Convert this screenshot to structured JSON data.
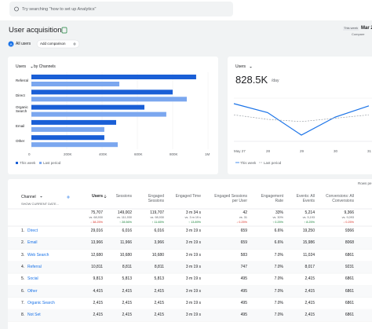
{
  "top_bar": {
    "search_placeholder": "Try searching \"how to set up Analytics\""
  },
  "header": {
    "title": "User acquisition",
    "date_label": "This week",
    "date": "Mar 2",
    "compare": "Compare",
    "segment_badge": "A",
    "segment": "All users",
    "add_comparison": "Add comparison"
  },
  "bar_chart": {
    "type": "bar",
    "metric": "Users",
    "subtitle": "by Channels",
    "categories": [
      "Referral",
      "Direct",
      "Organic Search",
      "Email",
      "Other"
    ],
    "series": [
      {
        "name": "This week",
        "color": "#1a5fd6",
        "values": [
          933000,
          800000,
          640000,
          480000,
          413000
        ]
      },
      {
        "name": "Last period",
        "color": "#7ba7ef",
        "values": [
          498000,
          880000,
          764000,
          413000,
          489000
        ]
      }
    ],
    "xlim": [
      0,
      1000000
    ],
    "xticks": [
      0,
      {
        "value": 200000,
        "label": "200K"
      },
      {
        "value": 400000,
        "label": "400K"
      },
      {
        "value": 600000,
        "label": "600K"
      },
      {
        "value": 800000,
        "label": "800K"
      },
      {
        "value": 1000000,
        "label": "1M"
      }
    ]
  },
  "line_chart": {
    "type": "line",
    "metric": "Users",
    "headline": "828.5K",
    "unit": "/day",
    "categories": [
      "May 27",
      "28",
      "29",
      "30",
      "31"
    ],
    "series": [
      {
        "name": "This week",
        "color": "#1a73e8",
        "values": [
          840,
          800,
          700,
          780,
          830
        ]
      },
      {
        "name": "Last period",
        "color": "#9aa0a6",
        "values": [
          790,
          770,
          760,
          775,
          790
        ]
      }
    ]
  },
  "table": {
    "rows_per_page": "Rows pe",
    "search": "SHOW CURRENT DATE...",
    "channel_header": "Channel",
    "columns": [
      "Users",
      "Sessions",
      "Engaged Sessions",
      "Engaged Time",
      "Engaged Sessions per User",
      "Engagement Rate",
      "Events: All Events",
      "Conversions: All Conversions"
    ],
    "totals": [
      [
        "75,707",
        "vs. 68,930",
        "↓ 38.25%"
      ],
      [
        "149,002",
        "vs. 111,930",
        "↑ 28.56%"
      ],
      [
        "119,707",
        "vs. 98,930",
        "↑ 11.65%"
      ],
      [
        "3 m 34 s",
        "vs. 3 m 19 s",
        "↑ 13.89%"
      ],
      [
        "42",
        "vs. 31",
        "↓ 0.25%"
      ],
      [
        "33%",
        "vs. 30%",
        "↑ 0.25%"
      ],
      [
        "5,214",
        "vs. 5,193",
        "↑ 8.25%"
      ],
      [
        "9,366",
        "vs. 9,093",
        "↓ 0.25%"
      ]
    ],
    "rows": [
      [
        "1.",
        "Direct",
        "29,016",
        "6,016",
        "6,016",
        "3 m 19 s",
        "659",
        "6.6%",
        "19,250",
        "9366"
      ],
      [
        "2.",
        "Email",
        "13,966",
        "11,966",
        "3,966",
        "3 m 19 s",
        "659",
        "6.6%",
        "15,986",
        "8068"
      ],
      [
        "3.",
        "Web Search",
        "12,680",
        "10,680",
        "10,680",
        "3 m 19 s",
        "583",
        "7.0%",
        "11,024",
        "6861"
      ],
      [
        "4.",
        "Referral",
        "10,811",
        "8,811",
        "8,811",
        "3 m 19 s",
        "747",
        "7.0%",
        "8,017",
        "9231"
      ],
      [
        "5.",
        "Social",
        "9,813",
        "5,813",
        "5,813",
        "3 m 19 s",
        "495",
        "7.0%",
        "2,415",
        "6861"
      ],
      [
        "6.",
        "Other",
        "4,415",
        "2,415",
        "2,415",
        "3 m 19 s",
        "495",
        "7.0%",
        "2,415",
        "6861"
      ],
      [
        "7.",
        "Organic Search",
        "2,415",
        "2,415",
        "2,415",
        "3 m 19 s",
        "495",
        "7.0%",
        "2,415",
        "6861"
      ],
      [
        "8.",
        "Not Set",
        "2,415",
        "2,415",
        "2,415",
        "3 m 19 s",
        "495",
        "7.0%",
        "2,415",
        "6861"
      ]
    ]
  }
}
